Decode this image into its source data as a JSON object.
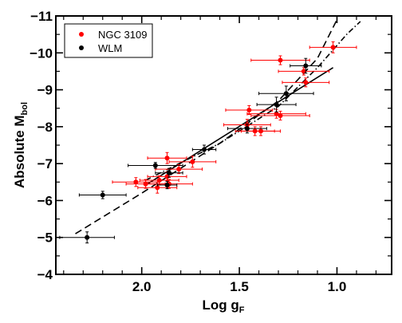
{
  "chart_data": {
    "type": "scatter",
    "xlabel": "Log g",
    "xlabel_sub": "F",
    "ylabel": "Absolute M",
    "ylabel_sub": "bol",
    "xlim": [
      2.44,
      0.72
    ],
    "ylim": [
      -4,
      -11
    ],
    "x_ticks": [
      2.0,
      1.5,
      1.0
    ],
    "x_tick_labels": [
      "2.0",
      "1.5",
      "1.0"
    ],
    "y_ticks": [
      -4,
      -5,
      -6,
      -7,
      -8,
      -9,
      -10,
      -11
    ],
    "y_tick_labels": [
      "−4",
      "−5",
      "−6",
      "−7",
      "−8",
      "−9",
      "−10",
      "−11"
    ],
    "legend": {
      "position": "top-left"
    },
    "series": [
      {
        "name": "NGC 3109",
        "color": "#ff0000",
        "points": [
          {
            "x": 1.02,
            "y": -10.15,
            "xerr": 0.12,
            "yerr": 0.15
          },
          {
            "x": 1.29,
            "y": -9.8,
            "xerr": 0.15,
            "yerr": 0.12
          },
          {
            "x": 1.17,
            "y": -9.5,
            "xerr": 0.13,
            "yerr": 0.1
          },
          {
            "x": 1.16,
            "y": -9.2,
            "xerr": 0.12,
            "yerr": 0.12
          },
          {
            "x": 1.31,
            "y": -8.35,
            "xerr": 0.15,
            "yerr": 0.12
          },
          {
            "x": 1.29,
            "y": -8.3,
            "xerr": 0.15,
            "yerr": 0.12
          },
          {
            "x": 1.46,
            "y": -8.05,
            "xerr": 0.12,
            "yerr": 0.15
          },
          {
            "x": 1.42,
            "y": -7.88,
            "xerr": 0.1,
            "yerr": 0.12
          },
          {
            "x": 1.39,
            "y": -7.88,
            "xerr": 0.1,
            "yerr": 0.12
          },
          {
            "x": 1.45,
            "y": -8.45,
            "xerr": 0.12,
            "yerr": 0.12
          },
          {
            "x": 1.74,
            "y": -7.05,
            "xerr": 0.12,
            "yerr": 0.15
          },
          {
            "x": 1.81,
            "y": -6.85,
            "xerr": 0.12,
            "yerr": 0.12
          },
          {
            "x": 1.87,
            "y": -7.15,
            "xerr": 0.1,
            "yerr": 0.15
          },
          {
            "x": 1.91,
            "y": -6.55,
            "xerr": 0.1,
            "yerr": 0.12
          },
          {
            "x": 1.87,
            "y": -6.65,
            "xerr": 0.1,
            "yerr": 0.12
          },
          {
            "x": 1.86,
            "y": -6.45,
            "xerr": 0.12,
            "yerr": 0.12
          },
          {
            "x": 1.98,
            "y": -6.45,
            "xerr": 0.1,
            "yerr": 0.12
          },
          {
            "x": 2.03,
            "y": -6.5,
            "xerr": 0.12,
            "yerr": 0.12
          },
          {
            "x": 1.92,
            "y": -6.35,
            "xerr": 0.1,
            "yerr": 0.15
          }
        ]
      },
      {
        "name": "WLM",
        "color": "#000000",
        "points": [
          {
            "x": 1.16,
            "y": -9.65,
            "xerr": 0.08,
            "yerr": 0.2
          },
          {
            "x": 1.26,
            "y": -8.9,
            "xerr": 0.14,
            "yerr": 0.2
          },
          {
            "x": 1.31,
            "y": -8.6,
            "xerr": 0.1,
            "yerr": 0.2
          },
          {
            "x": 1.46,
            "y": -7.95,
            "xerr": 0.1,
            "yerr": 0.12
          },
          {
            "x": 1.68,
            "y": -7.38,
            "xerr": 0.06,
            "yerr": 0.12
          },
          {
            "x": 1.93,
            "y": -6.95,
            "xerr": 0.14,
            "yerr": 0.08
          },
          {
            "x": 1.86,
            "y": -6.75,
            "xerr": 0.07,
            "yerr": 0.12
          },
          {
            "x": 1.87,
            "y": -6.42,
            "xerr": 0.05,
            "yerr": 0.1
          },
          {
            "x": 2.2,
            "y": -6.15,
            "xerr": 0.12,
            "yerr": 0.1
          },
          {
            "x": 2.28,
            "y": -5.0,
            "xerr": 0.14,
            "yerr": 0.15
          }
        ]
      }
    ],
    "lines": [
      {
        "style": "solid",
        "points": [
          [
            1.97,
            -6.45
          ],
          [
            1.02,
            -9.6
          ]
        ]
      },
      {
        "style": "dashed",
        "points": [
          [
            2.34,
            -5.1
          ],
          [
            2.0,
            -6.2
          ],
          [
            1.6,
            -7.55
          ],
          [
            1.3,
            -8.7
          ],
          [
            1.1,
            -9.85
          ],
          [
            1.0,
            -10.9
          ]
        ]
      },
      {
        "style": "dashdot",
        "points": [
          [
            1.98,
            -6.55
          ],
          [
            1.6,
            -7.55
          ],
          [
            1.3,
            -8.55
          ],
          [
            1.1,
            -9.6
          ],
          [
            0.95,
            -10.5
          ],
          [
            0.88,
            -10.85
          ]
        ]
      }
    ]
  }
}
